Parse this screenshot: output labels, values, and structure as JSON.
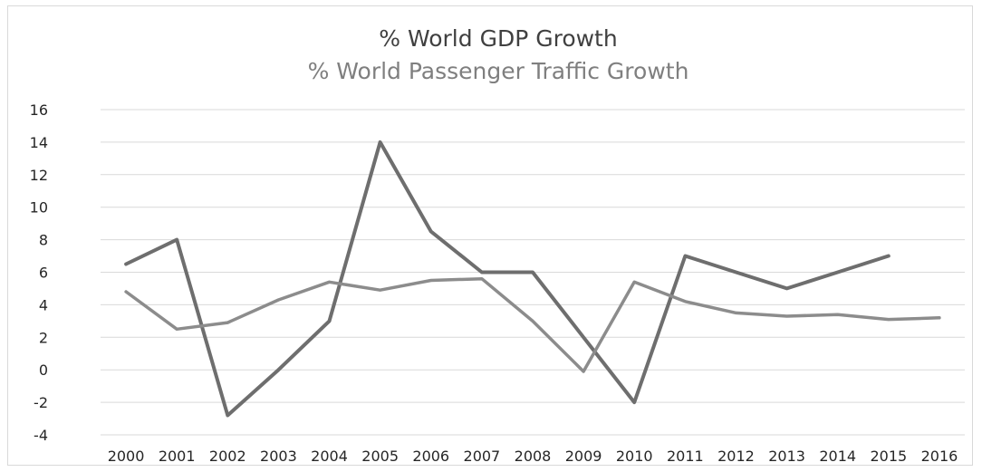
{
  "chart_data": {
    "type": "line",
    "title": "% World GDP Growth",
    "subtitle": "% World Passenger Traffic Growth",
    "xlabel": "",
    "ylabel": "",
    "x": [
      "2000",
      "2001",
      "2002",
      "2003",
      "2004",
      "2005",
      "2006",
      "2007",
      "2008",
      "2009",
      "2010",
      "2011",
      "2012",
      "2013",
      "2014",
      "2015",
      "2016"
    ],
    "ylim": [
      -4,
      16
    ],
    "yticks": [
      "16",
      "14",
      "12",
      "10",
      "8",
      "6",
      "4",
      "2",
      "0",
      "-2",
      "-4"
    ],
    "grid": true,
    "legend": "none",
    "series": [
      {
        "color": "#6e6e6e",
        "values": [
          6.5,
          8.0,
          -2.8,
          0.0,
          3.0,
          14.0,
          8.5,
          6.0,
          6.0,
          2.0,
          -2.0,
          7.0,
          6.0,
          5.0,
          6.0,
          7.0,
          null
        ]
      },
      {
        "color": "#8c8c8c",
        "values": [
          4.8,
          2.5,
          2.9,
          4.3,
          5.4,
          4.9,
          5.5,
          5.6,
          3.0,
          -0.1,
          5.4,
          4.2,
          3.5,
          3.3,
          3.4,
          3.1,
          3.2
        ]
      }
    ]
  }
}
